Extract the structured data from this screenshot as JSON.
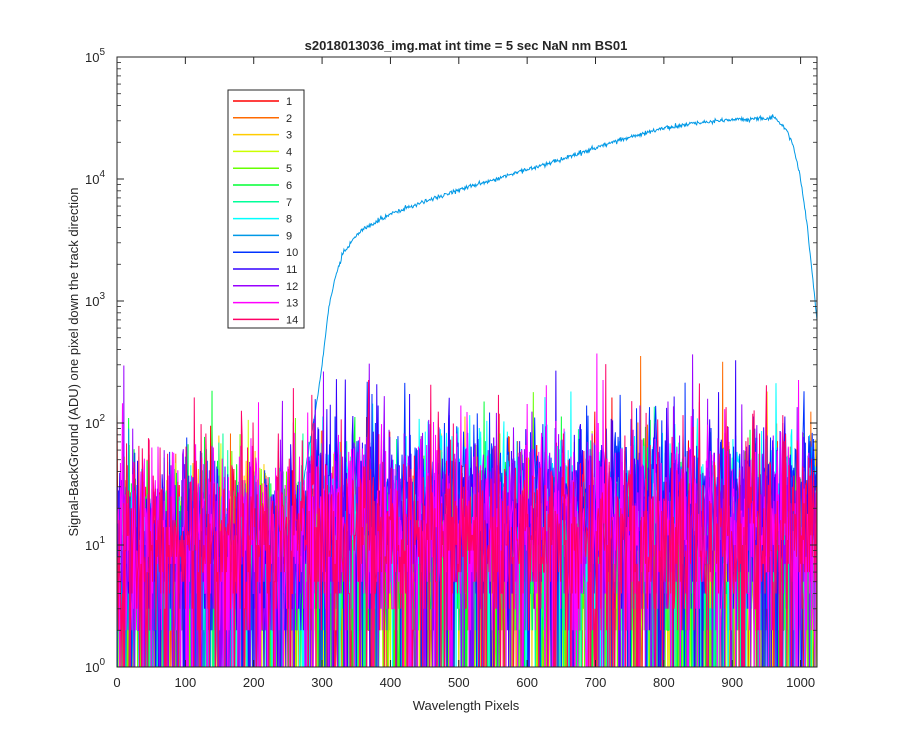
{
  "chart_data": {
    "type": "line",
    "title": "s2018013036_img.mat int time = 5 sec  NaN nm BS01",
    "xlabel": "Wavelength Pixels",
    "ylabel": "Signal-BackGround (ADU) one pixel down the track direction",
    "xlim": [
      0,
      1024
    ],
    "ylim": [
      1,
      100000
    ],
    "yscale": "log",
    "grid": false,
    "legend_position": "top-left",
    "x_ticks": [
      0,
      100,
      200,
      300,
      400,
      500,
      600,
      700,
      800,
      900,
      1000
    ],
    "y_ticks": [
      {
        "value": 1,
        "base": "10",
        "exp": "0"
      },
      {
        "value": 10,
        "base": "10",
        "exp": "1"
      },
      {
        "value": 100,
        "base": "10",
        "exp": "2"
      },
      {
        "value": 1000,
        "base": "10",
        "exp": "3"
      },
      {
        "value": 10000,
        "base": "10",
        "exp": "4"
      },
      {
        "value": 100000,
        "base": "10",
        "exp": "5"
      }
    ],
    "series": [
      {
        "name": "1",
        "color": "#ff0000",
        "kind": "noise",
        "level": 8,
        "spread": 1.0
      },
      {
        "name": "2",
        "color": "#ff6a00",
        "kind": "noise",
        "level": 7,
        "spread": 1.0
      },
      {
        "name": "3",
        "color": "#ffcc00",
        "kind": "noise",
        "level": 7,
        "spread": 1.0
      },
      {
        "name": "4",
        "color": "#ccff00",
        "kind": "noise",
        "level": 6,
        "spread": 1.0
      },
      {
        "name": "5",
        "color": "#66ff00",
        "kind": "noise",
        "level": 6,
        "spread": 1.0
      },
      {
        "name": "6",
        "color": "#00ff33",
        "kind": "noise",
        "level": 7,
        "spread": 1.0
      },
      {
        "name": "7",
        "color": "#00ff99",
        "kind": "noise",
        "level": 8,
        "spread": 1.0
      },
      {
        "name": "8",
        "color": "#00ffff",
        "kind": "noise",
        "level": 25,
        "spread": 0.7
      },
      {
        "name": "9",
        "color": "#0099e6",
        "kind": "profile",
        "points": [
          [
            0,
            3
          ],
          [
            100,
            3
          ],
          [
            200,
            4
          ],
          [
            250,
            6
          ],
          [
            262,
            10
          ],
          [
            275,
            40
          ],
          [
            290,
            120
          ],
          [
            300,
            300
          ],
          [
            310,
            900
          ],
          [
            320,
            1600
          ],
          [
            330,
            2400
          ],
          [
            345,
            3200
          ],
          [
            360,
            3900
          ],
          [
            380,
            4500
          ],
          [
            400,
            5200
          ],
          [
            450,
            6500
          ],
          [
            500,
            8200
          ],
          [
            550,
            9800
          ],
          [
            600,
            12000
          ],
          [
            650,
            14500
          ],
          [
            700,
            18000
          ],
          [
            750,
            22000
          ],
          [
            800,
            26000
          ],
          [
            850,
            29000
          ],
          [
            900,
            30500
          ],
          [
            940,
            31000
          ],
          [
            960,
            32000
          ],
          [
            970,
            29000
          ],
          [
            980,
            25000
          ],
          [
            990,
            18000
          ],
          [
            1000,
            10000
          ],
          [
            1010,
            4000
          ],
          [
            1018,
            1500
          ],
          [
            1024,
            700
          ]
        ]
      },
      {
        "name": "10",
        "color": "#0033ff",
        "kind": "noise",
        "level": 30,
        "spread": 0.7
      },
      {
        "name": "11",
        "color": "#3300ff",
        "kind": "noise",
        "level": 18,
        "spread": 0.9
      },
      {
        "name": "12",
        "color": "#9900ff",
        "kind": "noise",
        "level": 14,
        "spread": 1.0
      },
      {
        "name": "13",
        "color": "#ff00ff",
        "kind": "noise",
        "level": 12,
        "spread": 1.0
      },
      {
        "name": "14",
        "color": "#ff0066",
        "kind": "noise",
        "level": 12,
        "spread": 1.0
      }
    ]
  }
}
